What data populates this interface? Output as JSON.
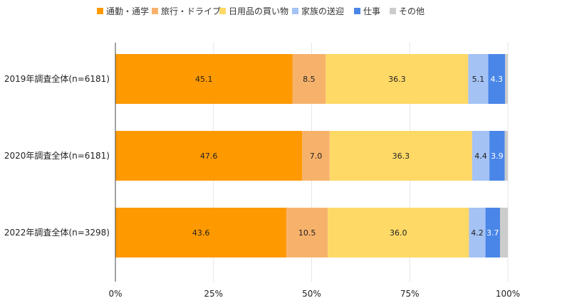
{
  "chart_data": {
    "type": "bar",
    "stacked": true,
    "orientation": "horizontal",
    "percent_stacked": true,
    "categories": [
      "2019年調査全体(n=6181)",
      "2020年調査全体(n=6181)",
      "2022年調査全体(n=3298)"
    ],
    "series": [
      {
        "name": "通勤・通学",
        "color": "#ff9900",
        "values": [
          45.1,
          47.6,
          43.6
        ],
        "labels": [
          "45.1",
          "47.6",
          "43.6"
        ]
      },
      {
        "name": "旅行・ドライブ",
        "color": "#f6b26b",
        "values": [
          8.5,
          7.0,
          10.5
        ],
        "labels": [
          "8.5",
          "7.0",
          "10.5"
        ]
      },
      {
        "name": "日用品の買い物",
        "color": "#ffd966",
        "values": [
          36.3,
          36.3,
          36.0
        ],
        "labels": [
          "36.3",
          "36.3",
          "36.0"
        ]
      },
      {
        "name": "家族の送迎",
        "color": "#a4c2f4",
        "values": [
          5.1,
          4.4,
          4.2
        ],
        "labels": [
          "5.1",
          "4.4",
          "4.2"
        ]
      },
      {
        "name": "仕事",
        "color": "#4a86e8",
        "values": [
          4.3,
          3.9,
          3.7
        ],
        "labels": [
          "4.3",
          "3.9",
          "3.7"
        ]
      },
      {
        "name": "その他",
        "color": "#cccccc",
        "values": [
          0.7,
          0.8,
          2.0
        ],
        "labels": [
          "",
          "",
          ""
        ]
      }
    ],
    "x_ticks": [
      "0%",
      "25%",
      "50%",
      "75%",
      "100%"
    ],
    "xlim": [
      0,
      100
    ],
    "legend_position": "top",
    "grid": true
  }
}
